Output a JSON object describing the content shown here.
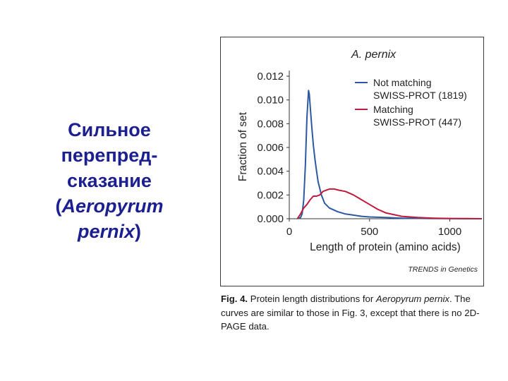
{
  "slide": {
    "title_lines": [
      "Сильное",
      "перепред-",
      "сказание"
    ],
    "title_species_line1": "Aeropyrum",
    "title_species_line2": "pernix",
    "paren_open": "(",
    "paren_close": ")"
  },
  "chart_data": {
    "type": "line",
    "title": "A. pernix",
    "xlabel": "Length of protein (amino acids)",
    "ylabel": "Fraction of set",
    "xlim": [
      0,
      1200
    ],
    "ylim": [
      0,
      0.012
    ],
    "x_ticks": [
      0,
      500,
      1000
    ],
    "x_tick_labels": [
      "0",
      "500",
      "1000"
    ],
    "y_ticks": [
      0,
      0.002,
      0.004,
      0.006,
      0.008,
      0.01,
      0.012
    ],
    "y_tick_labels": [
      "0.000",
      "0.002",
      "0.004",
      "0.006",
      "0.008",
      "0.010",
      "0.012"
    ],
    "grid": false,
    "legend_position": "top-right",
    "credit": "TRENDS in Genetics",
    "series": [
      {
        "name": "Not matching SWISS-PROT (1819)",
        "legend_lines": [
          "Not matching",
          "SWISS-PROT (1819)"
        ],
        "color": "#2b5aa0",
        "x": [
          50,
          70,
          80,
          90,
          100,
          110,
          120,
          125,
          130,
          140,
          150,
          160,
          170,
          180,
          200,
          220,
          250,
          300,
          350,
          400,
          450,
          500,
          600,
          700,
          800,
          900,
          1000,
          1100,
          1200
        ],
        "y": [
          0,
          0.0001,
          0.0004,
          0.0016,
          0.0045,
          0.0085,
          0.0108,
          0.0105,
          0.0095,
          0.0078,
          0.0062,
          0.005,
          0.004,
          0.0031,
          0.002,
          0.0013,
          0.0009,
          0.0006,
          0.0004,
          0.0003,
          0.0002,
          0.00015,
          0.0001,
          5e-05,
          3e-05,
          2e-05,
          1e-05,
          0,
          0
        ]
      },
      {
        "name": "Matching SWISS-PROT (447)",
        "legend_lines": [
          "Matching",
          "SWISS-PROT (447)"
        ],
        "color": "#c01b3c",
        "x": [
          50,
          70,
          90,
          110,
          130,
          150,
          170,
          190,
          210,
          230,
          250,
          280,
          310,
          350,
          400,
          450,
          500,
          550,
          600,
          700,
          800,
          900,
          1000,
          1100,
          1200
        ],
        "y": [
          0,
          0.0004,
          0.0009,
          0.0012,
          0.0016,
          0.0019,
          0.0019,
          0.002,
          0.0023,
          0.0024,
          0.0025,
          0.0025,
          0.0024,
          0.0023,
          0.002,
          0.0016,
          0.0012,
          0.0008,
          0.0005,
          0.0002,
          0.0001,
          5e-05,
          2e-05,
          1e-05,
          0
        ]
      }
    ]
  },
  "caption": {
    "fig_label": "Fig. 4.",
    "text_1": "Protein length distributions for",
    "species": "Aeropyrum pernix",
    "text_2": ". The curves are similar to those in Fig. 3, except that there is no 2D-PAGE data."
  }
}
